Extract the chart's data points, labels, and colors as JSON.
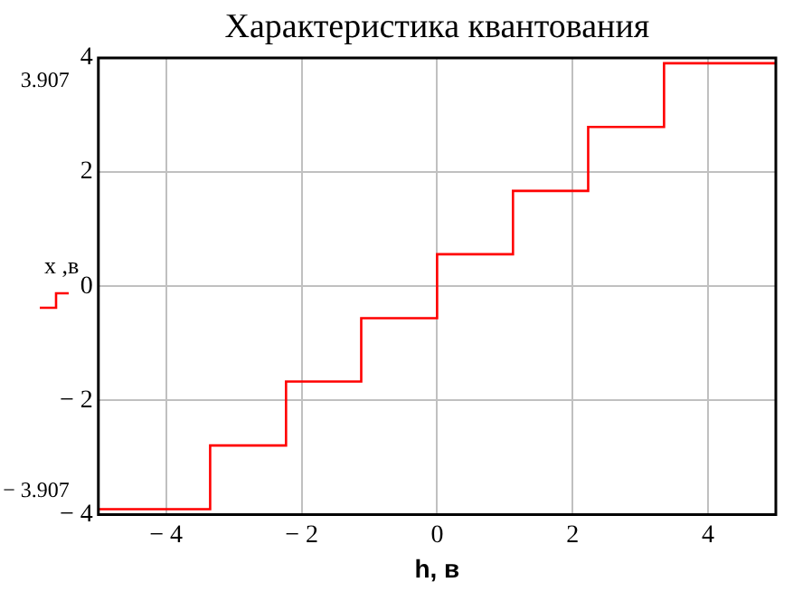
{
  "chart_data": {
    "type": "step",
    "title": "Характеристика квантования",
    "xlabel": "h, в",
    "ylabel": "x ,в",
    "x": [
      -5,
      -3.35,
      -2.23,
      -1.12,
      0,
      1.12,
      2.23,
      3.35,
      5
    ],
    "series": [
      {
        "color": "#ff0000",
        "values": [
          -3.907,
          -2.79,
          -1.67,
          -0.56,
          0.56,
          1.67,
          2.79,
          3.907,
          3.907
        ]
      }
    ],
    "xlim": [
      -5,
      5
    ],
    "ylim": [
      -4,
      4
    ],
    "xticks": [
      {
        "value": -4,
        "label": "− 4"
      },
      {
        "value": -2,
        "label": "− 2"
      },
      0,
      2,
      4
    ],
    "yticks": [
      {
        "value": -4,
        "label": "− 4"
      },
      {
        "value": -2,
        "label": "− 2"
      },
      0,
      2,
      4
    ],
    "annotations": [
      "3.907",
      "− 3.907"
    ],
    "grid": true
  }
}
